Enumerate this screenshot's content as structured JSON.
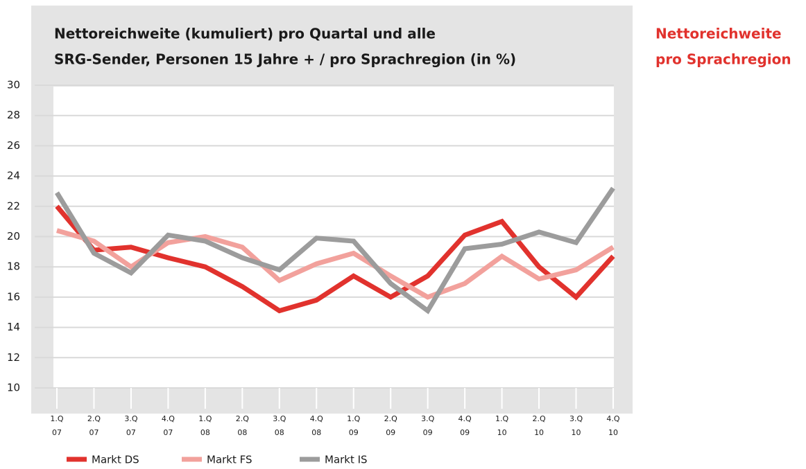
{
  "heading": [
    "Nettoreichweite",
    "pro Sprachregion"
  ],
  "chart_data": {
    "type": "line",
    "title": [
      "Nettoreichweite (kumuliert) pro Quartal und alle",
      "SRG-Sender, Personen 15 Jahre + / pro Sprachregion (in %)"
    ],
    "categories": [
      "1.Q 07",
      "2.Q 07",
      "3.Q 07",
      "4.Q 07",
      "1.Q 08",
      "2.Q 08",
      "3.Q 08",
      "4.Q 08",
      "1.Q 09",
      "2.Q 09",
      "3.Q 09",
      "4.Q 09",
      "1.Q 10",
      "2.Q 10",
      "3.Q 10",
      "4.Q 10"
    ],
    "series": [
      {
        "name": "Markt DS",
        "color": "#e1322d",
        "values": [
          22.0,
          19.1,
          19.3,
          18.6,
          18.0,
          16.7,
          15.1,
          15.8,
          17.4,
          16.0,
          17.4,
          20.1,
          21.0,
          18.0,
          16.0,
          18.7
        ]
      },
      {
        "name": "Markt FS",
        "color": "#f2a19c",
        "values": [
          20.4,
          19.7,
          18.0,
          19.6,
          20.0,
          19.3,
          17.1,
          18.2,
          18.9,
          17.4,
          16.0,
          16.9,
          18.7,
          17.2,
          17.8,
          19.3
        ]
      },
      {
        "name": "Markt IS",
        "color": "#9c9c9c",
        "values": [
          22.9,
          18.9,
          17.6,
          20.1,
          19.7,
          18.6,
          17.8,
          19.9,
          19.7,
          16.9,
          15.1,
          19.2,
          19.5,
          20.3,
          19.6,
          23.2
        ]
      }
    ],
    "ylim": [
      10,
      30
    ],
    "yticks": [
      10,
      12,
      14,
      16,
      18,
      20,
      22,
      24,
      26,
      28,
      30
    ],
    "grid": true
  }
}
